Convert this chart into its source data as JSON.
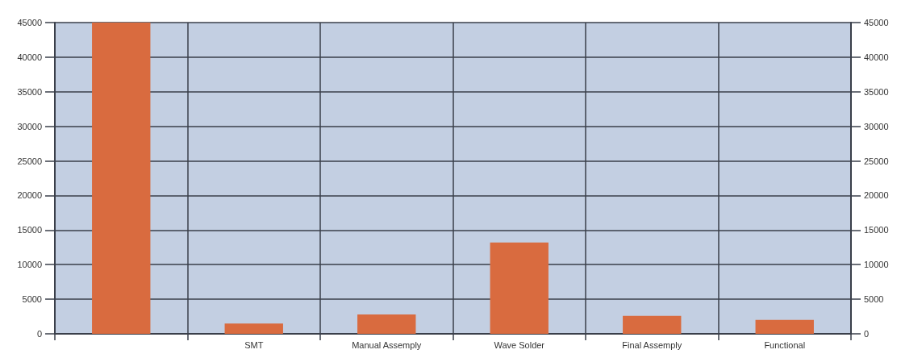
{
  "chart_data": {
    "type": "bar",
    "categories": [
      null,
      "SMT",
      "Manual Assemply",
      "Wave Solder",
      "Final Assemply",
      "Functional"
    ],
    "values": [
      45000,
      1500,
      2800,
      13200,
      2600,
      2000
    ],
    "color": "#d96b3f",
    "ylim": [
      0,
      45000
    ],
    "yticks": [
      0,
      5000,
      10000,
      15000,
      20000,
      25000,
      30000,
      35000,
      40000,
      45000
    ],
    "y2lim": [
      0,
      45000
    ],
    "y2ticks": [
      0,
      5000,
      10000,
      15000,
      20000,
      25000,
      30000,
      35000,
      40000,
      45000
    ],
    "grid": true
  }
}
